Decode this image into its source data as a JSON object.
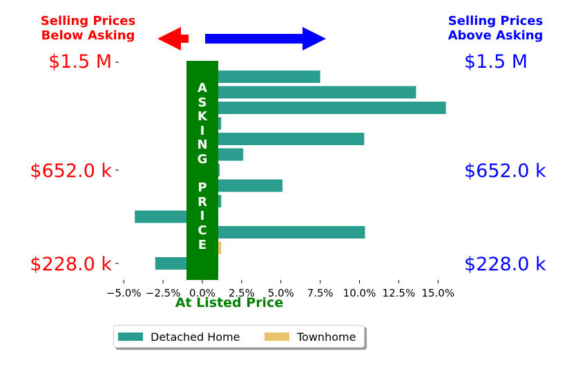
{
  "header": {
    "left_line1": "Selling Prices",
    "left_line2": "Below Asking",
    "right_line1": "Selling Prices",
    "right_line2": "Above Asking"
  },
  "price_labels": {
    "top": "$1.5 M",
    "middle": "$652.0 k",
    "bottom": "$228.0 k"
  },
  "asking_price_label": [
    "A",
    "S",
    "K",
    "I",
    "N",
    "G",
    "",
    "P",
    "R",
    "I",
    "C",
    "E"
  ],
  "at_listed_label": "At Listed Price",
  "legend": {
    "detached": "Detached Home",
    "townhome": "Townhome"
  },
  "colors": {
    "detached": "#2a9d8f",
    "townhome": "#e9c46a",
    "asking_band": "#008000",
    "below": "#ff0000",
    "above": "#0000ff"
  },
  "chart_data": {
    "type": "bar",
    "orientation": "horizontal",
    "xlabel": "At Listed Price",
    "x_tick_labels": [
      "−5.0%",
      "−2.5%",
      "0.0%",
      "2.5%",
      "5.0%",
      "7.5%",
      "10.0%",
      "12.5%",
      "15.0%"
    ],
    "x_ticks": [
      -5,
      -2.5,
      0,
      2.5,
      5,
      7.5,
      10,
      12.5,
      15
    ],
    "xlim": [
      -5.5,
      16.5
    ],
    "y_tick_labels": [
      "$1.5 M",
      "$652.0 k",
      "$228.0 k"
    ],
    "series": [
      {
        "name": "Detached Home",
        "bars": [
          {
            "row": 0,
            "value": 7.5
          },
          {
            "row": 1,
            "value": 13.6
          },
          {
            "row": 2,
            "value": 15.5
          },
          {
            "row": 3,
            "value": 1.2
          },
          {
            "row": 4,
            "value": 10.3
          },
          {
            "row": 5,
            "value": 2.6
          },
          {
            "row": 6,
            "value": 1.1
          },
          {
            "row": 7,
            "value": 5.1
          },
          {
            "row": 8,
            "value": 1.2
          },
          {
            "row": 9,
            "value": -4.3
          },
          {
            "row": 10,
            "value": 10.35
          },
          {
            "row": 12,
            "value": -3.0
          }
        ]
      },
      {
        "name": "Townhome",
        "bars": [
          {
            "row": 11,
            "value": 1.2
          }
        ]
      }
    ]
  }
}
